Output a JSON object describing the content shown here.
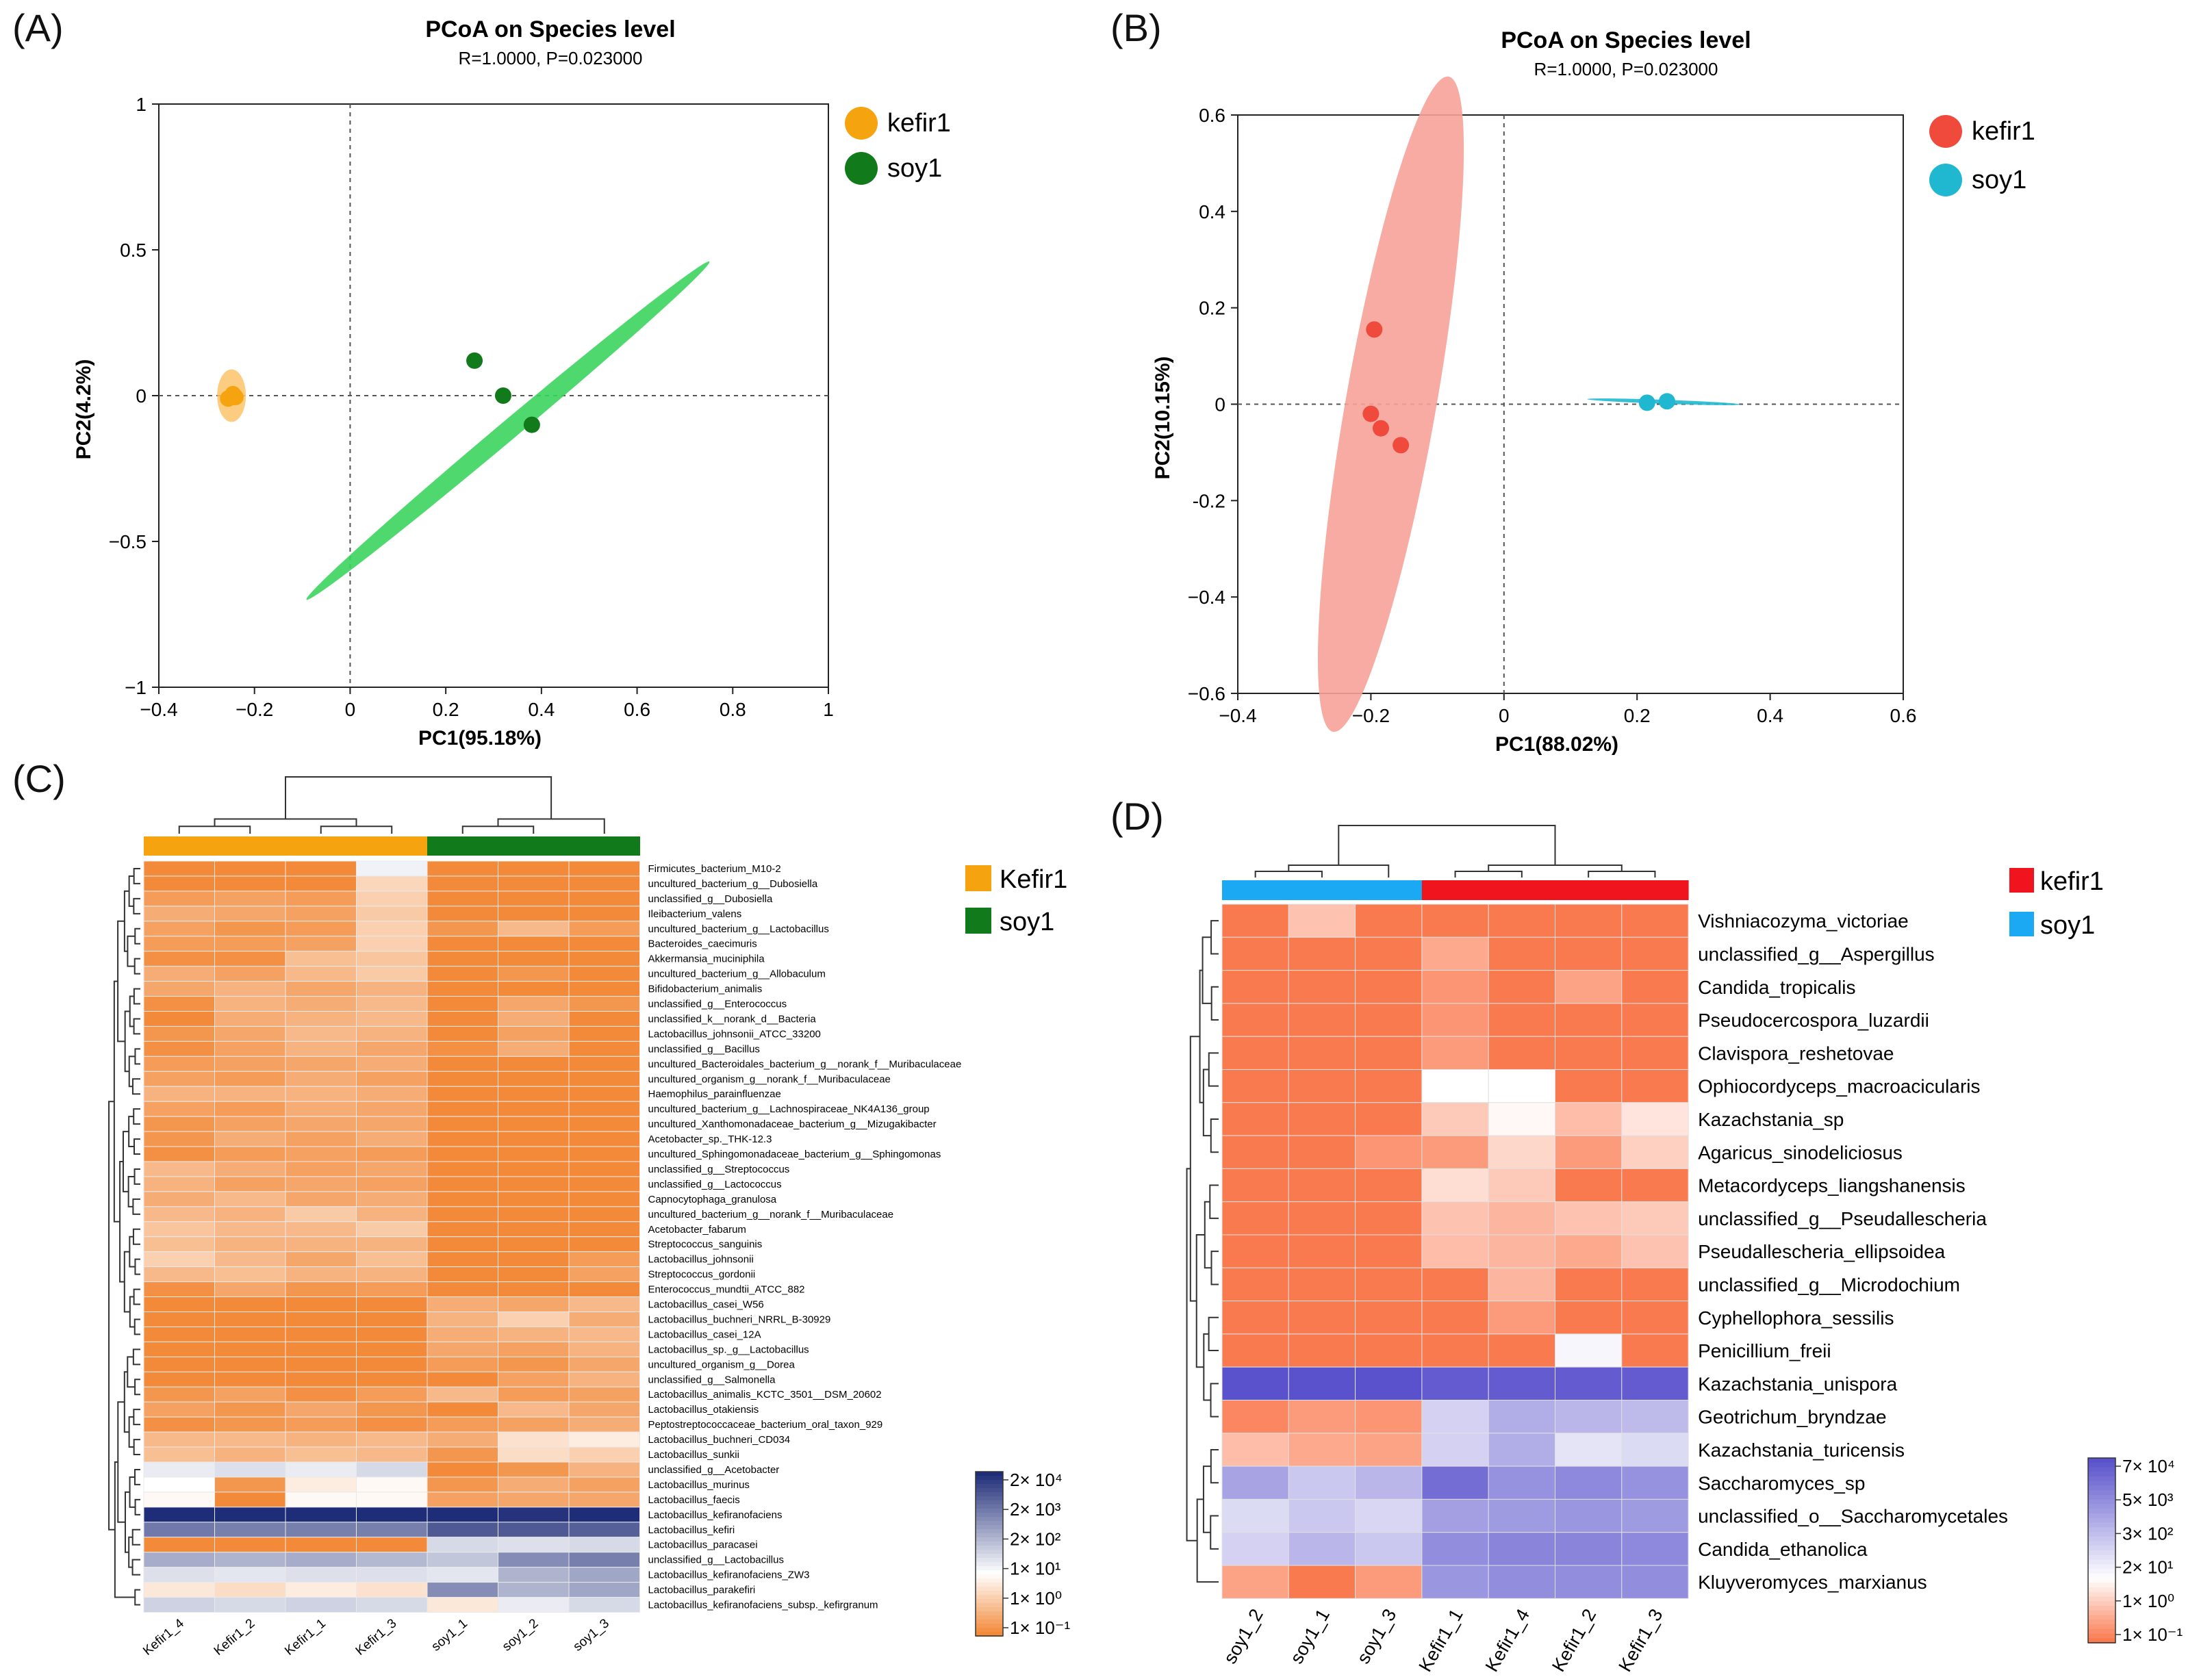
{
  "panels": {
    "A": {
      "letter": "(A)",
      "title": "PCoA on Species level",
      "subtitle": "R=1.0000, P=0.023000"
    },
    "B": {
      "letter": "(B)",
      "title": "PCoA on Species level",
      "subtitle": "R=1.0000, P=0.023000"
    },
    "C": {
      "letter": "(C)"
    },
    "D": {
      "letter": "(D)"
    }
  },
  "chart_data": [
    {
      "id": "A",
      "type": "scatter",
      "title": "PCoA on Species level",
      "subtitle": "R=1.0000, P=0.023000",
      "xlabel": "PC1(95.18%)",
      "ylabel": "PC2(4.2%)",
      "xlim": [
        -0.4,
        1
      ],
      "ylim": [
        -1,
        1
      ],
      "xticks": [
        -0.4,
        -0.2,
        0,
        0.2,
        0.4,
        0.6,
        0.8,
        1
      ],
      "xtick_labels": [
        "−0.4",
        "−0.2",
        "0",
        "0.2",
        "0.4",
        "0.6",
        "0.8",
        "1"
      ],
      "yticks": [
        1,
        0.5,
        0,
        -0.5,
        -1
      ],
      "ytick_labels": [
        "1",
        "0.5",
        "0",
        "−0.5",
        "−1"
      ],
      "legend_position": "top-right",
      "series": [
        {
          "name": "kefir1",
          "color": "#f5a30e",
          "ellipse_color": "#fbc36a",
          "points": [
            [
              -0.255,
              -0.01
            ],
            [
              -0.245,
              0.005
            ],
            [
              -0.24,
              -0.005
            ]
          ],
          "ellipse": {
            "cx": -0.248,
            "cy": 0.0,
            "rx": 0.03,
            "ry": 0.055,
            "angle": 0
          }
        },
        {
          "name": "soy1",
          "color": "#117a1a",
          "ellipse_color": "#3cd45e",
          "points": [
            [
              0.26,
              0.12
            ],
            [
              0.32,
              0.0
            ],
            [
              0.38,
              -0.1
            ]
          ],
          "ellipse": {
            "cx": 0.33,
            "cy": -0.12,
            "rx": 0.55,
            "ry": 0.02,
            "angle": -40
          }
        }
      ]
    },
    {
      "id": "B",
      "type": "scatter",
      "title": "PCoA on Species level",
      "subtitle": "R=1.0000, P=0.023000",
      "xlabel": "PC1(88.02%)",
      "ylabel": "PC2(10.15%)",
      "xlim": [
        -0.4,
        0.6
      ],
      "ylim": [
        -0.6,
        0.6
      ],
      "xticks": [
        -0.4,
        -0.2,
        0,
        0.2,
        0.4,
        0.6
      ],
      "xtick_labels": [
        "−0.4",
        "−0.2",
        "0",
        "0.2",
        "0.4",
        "0.6"
      ],
      "yticks": [
        0.6,
        0.4,
        0.2,
        0,
        -0.2,
        -0.4,
        -0.6
      ],
      "ytick_labels": [
        "0.6",
        "0.4",
        "0.2",
        "0",
        "-0.2",
        "−0.4",
        "−0.6"
      ],
      "legend_position": "top-right",
      "series": [
        {
          "name": "kefir1",
          "color": "#f04a3c",
          "ellipse_color": "#f7a298",
          "points": [
            [
              -0.195,
              0.155
            ],
            [
              -0.2,
              -0.02
            ],
            [
              -0.185,
              -0.05
            ],
            [
              -0.155,
              -0.085
            ]
          ],
          "ellipse": {
            "cx": -0.17,
            "cy": 0.0,
            "rx": 0.5,
            "ry": 0.068,
            "angle": -80
          }
        },
        {
          "name": "soy1",
          "color": "#20b8d0",
          "ellipse_color": "#20b8d0",
          "points": [
            [
              0.215,
              0.003
            ],
            [
              0.245,
              0.006
            ]
          ],
          "ellipse": {
            "cx": 0.24,
            "cy": 0.005,
            "rx": 0.115,
            "ry": 0.003,
            "angle": 2
          }
        }
      ]
    },
    {
      "id": "C",
      "type": "heatmap",
      "columns": [
        "Kefir1_4",
        "Kefir1_2",
        "Kefir1_1",
        "Kefir1_3",
        "soy1_1",
        "soy1_2",
        "soy1_3"
      ],
      "group_colors": [
        "#f5a30e",
        "#f5a30e",
        "#f5a30e",
        "#f5a30e",
        "#117a1a",
        "#117a1a",
        "#117a1a"
      ],
      "legend": [
        {
          "name": "Kefir1",
          "color": "#f5a30e"
        },
        {
          "name": "soy1",
          "color": "#117a1a"
        }
      ],
      "colorbar_labels": [
        "2× 10⁴",
        "2× 10³",
        "2× 10²",
        "1× 10¹",
        "1× 10⁰",
        "1× 10⁻¹"
      ],
      "value_scale": "log10 abundance, -1 to 4.3",
      "rows": [
        "Firmicutes_bacterium_M10-2",
        "uncultured_bacterium_g__Dubosiella",
        "unclassified_g__Dubosiella",
        "Ileibacterium_valens",
        "uncultured_bacterium_g__Lactobacillus",
        "Bacteroides_caecimuris",
        "Akkermansia_muciniphila",
        "uncultured_bacterium_g__Allobaculum",
        "Bifidobacterium_animalis",
        "unclassified_g__Enterococcus",
        "unclassified_k__norank_d__Bacteria",
        "Lactobacillus_johnsonii_ATCC_33200",
        "unclassified_g__Bacillus",
        "uncultured_Bacteroidales_bacterium_g__norank_f__Muribaculaceae",
        "uncultured_organism_g__norank_f__Muribaculaceae",
        "Haemophilus_parainfluenzae",
        "uncultured_bacterium_g__Lachnospiraceae_NK4A136_group",
        "uncultured_Xanthomonadaceae_bacterium_g__Mizugakibacter",
        "Acetobacter_sp._THK-12.3",
        "uncultured_Sphingomonadaceae_bacterium_g__Sphingomonas",
        "unclassified_g__Streptococcus",
        "unclassified_g__Lactococcus",
        "Capnocytophaga_granulosa",
        "uncultured_bacterium_g__norank_f__Muribaculaceae",
        "Acetobacter_fabarum",
        "Streptococcus_sanguinis",
        "Lactobacillus_johnsonii",
        "Streptococcus_gordonii",
        "Enterococcus_mundtii_ATCC_882",
        "Lactobacillus_casei_W56",
        "Lactobacillus_buchneri_NRRL_B-30929",
        "Lactobacillus_casei_12A",
        "Lactobacillus_sp._g__Lactobacillus",
        "uncultured_organism_g__Dorea",
        "unclassified_g__Salmonella",
        "Lactobacillus_animalis_KCTC_3501__DSM_20602",
        "Lactobacillus_otakiensis",
        "Peptostreptococcaceae_bacterium_oral_taxon_929",
        "Lactobacillus_buchneri_CD034",
        "Lactobacillus_sunkii",
        "unclassified_g__Acetobacter",
        "Lactobacillus_murinus",
        "Lactobacillus_faecis",
        "Lactobacillus_kefiranofaciens",
        "Lactobacillus_kefiri",
        "Lactobacillus_paracasei",
        "unclassified_g__Lactobacillus",
        "Lactobacillus_kefiranofaciens_ZW3",
        "Lactobacillus_parakefiri",
        "Lactobacillus_kefiranofaciens_subsp._kefirgranum"
      ],
      "values": [
        [
          -1,
          -1,
          -1,
          1.2,
          -1,
          -1,
          -1
        ],
        [
          -1,
          -1,
          -1,
          0.3,
          -1,
          -1,
          -1
        ],
        [
          -0.7,
          -0.6,
          -0.7,
          0.2,
          -1,
          -1,
          -1
        ],
        [
          -0.4,
          -0.5,
          -0.6,
          0.1,
          -1,
          -1,
          -1
        ],
        [
          -0.6,
          -0.8,
          -0.7,
          0.2,
          -0.8,
          -0.2,
          -0.7
        ],
        [
          -0.7,
          -0.7,
          -0.6,
          0.2,
          -1,
          -1,
          -1
        ],
        [
          -0.9,
          -0.9,
          -0.1,
          0.0,
          -1,
          -1,
          -1
        ],
        [
          -0.4,
          -0.6,
          -0.2,
          0.1,
          -1,
          -0.8,
          -1
        ],
        [
          -0.5,
          -0.3,
          -0.5,
          -0.3,
          -1,
          -1,
          -1
        ],
        [
          -0.9,
          -0.3,
          -0.4,
          -0.2,
          -1,
          -0.5,
          -0.8
        ],
        [
          -1,
          -0.4,
          -0.3,
          -0.2,
          -1,
          -0.4,
          -1
        ],
        [
          -0.8,
          -0.5,
          -0.2,
          -0.3,
          -1,
          -0.6,
          -1
        ],
        [
          -0.9,
          -0.6,
          -0.3,
          -0.5,
          -0.9,
          -0.4,
          -1
        ],
        [
          -0.7,
          -0.6,
          -0.5,
          -0.4,
          -1,
          -1,
          -1
        ],
        [
          -0.6,
          -0.7,
          -0.4,
          -0.6,
          -1,
          -1,
          -1
        ],
        [
          -0.3,
          -0.3,
          -0.3,
          -0.4,
          -1,
          -1,
          -1
        ],
        [
          -0.6,
          -0.7,
          -0.4,
          -0.5,
          -1,
          -1,
          -1
        ],
        [
          -0.8,
          -0.6,
          -0.5,
          -0.5,
          -1,
          -1,
          -1
        ],
        [
          -0.8,
          -0.4,
          -0.6,
          -0.4,
          -1,
          -1,
          -1
        ],
        [
          -0.9,
          -0.7,
          -0.6,
          -0.7,
          -1,
          -1,
          -1
        ],
        [
          -0.2,
          -0.4,
          -0.6,
          -0.5,
          -1,
          -1,
          -1
        ],
        [
          -0.3,
          -0.6,
          -0.5,
          -0.6,
          -1,
          -1,
          -1
        ],
        [
          -0.4,
          -0.2,
          -0.5,
          -0.4,
          -1,
          -1,
          -1
        ],
        [
          -0.2,
          -0.3,
          0.1,
          -0.3,
          -1,
          -1,
          -1
        ],
        [
          0.0,
          -0.2,
          -0.2,
          0.1,
          -1,
          -1,
          -1
        ],
        [
          -0.1,
          -0.3,
          -0.3,
          -0.3,
          -1,
          -1,
          -1
        ],
        [
          0.2,
          -0.2,
          -0.5,
          -0.1,
          -1,
          -1,
          -0.7
        ],
        [
          -0.2,
          -0.1,
          -0.3,
          -0.3,
          -1,
          -1,
          -0.6
        ],
        [
          -0.9,
          -0.5,
          -0.8,
          -0.7,
          -1,
          -1,
          -1
        ],
        [
          -1,
          -1,
          -1,
          -1,
          -0.4,
          -0.5,
          -0.2
        ],
        [
          -1,
          -1,
          -1,
          -1,
          -0.3,
          0.2,
          -0.4
        ],
        [
          -1,
          -1,
          -1,
          -1,
          -0.4,
          -0.3,
          -0.2
        ],
        [
          -1,
          -1,
          -1,
          -1,
          -0.5,
          -0.6,
          -0.3
        ],
        [
          -1,
          -1,
          -1,
          -1,
          -0.7,
          -0.8,
          -0.5
        ],
        [
          -1,
          -1,
          -1,
          -1,
          -1,
          -0.6,
          -0.3
        ],
        [
          -0.8,
          -0.6,
          -0.9,
          -0.7,
          -0.2,
          -0.7,
          -0.6
        ],
        [
          -0.6,
          -0.8,
          -0.5,
          -0.8,
          -1,
          -0.2,
          -0.5
        ],
        [
          -0.9,
          -0.8,
          -0.7,
          -0.9,
          -0.7,
          -0.6,
          -0.4
        ],
        [
          -0.2,
          -0.2,
          -0.3,
          -0.2,
          -0.4,
          0.5,
          0.7
        ],
        [
          -0.1,
          -0.3,
          -0.1,
          -0.2,
          -0.8,
          0.4,
          0.2
        ],
        [
          1.3,
          1.5,
          1.3,
          1.6,
          -1,
          -0.8,
          -0.3
        ],
        [
          1.0,
          -0.8,
          0.7,
          0.9,
          -0.8,
          -0.4,
          -0.6
        ],
        [
          0.9,
          -1,
          0.9,
          0.9,
          -0.6,
          -0.5,
          -0.5
        ],
        [
          4.3,
          4.3,
          4.3,
          4.3,
          4.3,
          4.2,
          4.3
        ],
        [
          3.1,
          3.0,
          3.0,
          3.0,
          3.6,
          3.6,
          3.5
        ],
        [
          -1,
          -1,
          -1,
          -1,
          1.6,
          1.5,
          1.6
        ],
        [
          2.3,
          2.2,
          2.3,
          2.1,
          1.9,
          2.8,
          3.0
        ],
        [
          1.5,
          1.4,
          1.5,
          1.5,
          1.4,
          2.2,
          2.4
        ],
        [
          0.6,
          0.4,
          0.7,
          0.5,
          2.8,
          2.2,
          2.4
        ],
        [
          1.7,
          1.6,
          1.7,
          1.6,
          0.6,
          1.3,
          1.6
        ]
      ]
    },
    {
      "id": "D",
      "type": "heatmap",
      "columns": [
        "soy1_2",
        "soy1_1",
        "soy1_3",
        "Kefir1_1",
        "Kefir1_4",
        "Kefir1_2",
        "Kefir1_3"
      ],
      "group_colors": [
        "#1aa9f2",
        "#1aa9f2",
        "#1aa9f2",
        "#f0141e",
        "#f0141e",
        "#f0141e",
        "#f0141e"
      ],
      "legend": [
        {
          "name": "kefir1",
          "color": "#f0141e"
        },
        {
          "name": "soy1",
          "color": "#1aa9f2"
        }
      ],
      "colorbar_labels": [
        "7× 10⁴",
        "5× 10³",
        "3× 10²",
        "2× 10¹",
        "1× 10⁰",
        "1× 10⁻¹"
      ],
      "value_scale": "log10 abundance, -1 to 4.8",
      "rows": [
        "Vishniacozyma_victoriae",
        "unclassified_g__Aspergillus",
        "Candida_tropicalis",
        "Pseudocercospora_luzardii",
        "Clavispora_reshetovae",
        "Ophiocordyceps_macroacicularis",
        "Kazachstania_sp",
        "Agaricus_sinodeliciosus",
        "Metacordyceps_liangshanensis",
        "unclassified_g__Pseudallescheria",
        "Pseudallescheria_ellipsoidea",
        "unclassified_g__Microdochium",
        "Cyphellophora_sessilis",
        "Penicillium_freii",
        "Kazachstania_unispora",
        "Geotrichum_bryndzae",
        "Kazachstania_turicensis",
        "Saccharomyces_sp",
        "unclassified_o__Saccharomycetales",
        "Candida_ethanolica",
        "Kluyveromyces_marxianus"
      ],
      "values": [
        [
          -1,
          0.1,
          -1,
          -1,
          -1,
          -1,
          -1
        ],
        [
          -1,
          -1,
          -1,
          -0.3,
          -1,
          -1,
          -1
        ],
        [
          -1,
          -1,
          -1,
          -0.6,
          -1,
          -0.4,
          -1
        ],
        [
          -1,
          -1,
          -1,
          -0.6,
          -1,
          -1,
          -1
        ],
        [
          -1,
          -1,
          -1,
          -0.5,
          -1,
          -1,
          -1
        ],
        [
          -1,
          -1,
          -1,
          1.0,
          1.0,
          -1,
          -1
        ],
        [
          -1,
          -1,
          -1,
          0.2,
          0.9,
          0.0,
          0.6
        ],
        [
          -1,
          -1,
          -0.6,
          -0.5,
          0.4,
          -0.5,
          0.3
        ],
        [
          -1,
          -1,
          -1,
          0.5,
          0.2,
          -1,
          -1
        ],
        [
          -1,
          -1,
          -1,
          0.1,
          -0.1,
          0.1,
          0.2
        ],
        [
          -1,
          -1,
          -1,
          0.0,
          -0.1,
          -0.3,
          0.1
        ],
        [
          -1,
          -1,
          -1,
          -1,
          -0.1,
          -1,
          -1
        ],
        [
          -1,
          -1,
          -1,
          -1,
          -0.5,
          -1,
          -1
        ],
        [
          -1,
          -1,
          -1,
          -1,
          -1,
          1.2,
          -1
        ],
        [
          4.8,
          4.8,
          4.8,
          4.6,
          4.6,
          4.6,
          4.6
        ],
        [
          -0.8,
          -0.5,
          -0.6,
          2.0,
          2.8,
          2.6,
          2.5
        ],
        [
          0.0,
          -0.3,
          -0.4,
          2.0,
          2.8,
          1.6,
          1.8
        ],
        [
          3.0,
          2.2,
          2.6,
          4.2,
          3.4,
          3.6,
          3.4
        ],
        [
          1.8,
          2.2,
          1.9,
          3.1,
          3.2,
          3.3,
          3.2
        ],
        [
          2.0,
          2.6,
          2.2,
          3.5,
          3.7,
          3.7,
          3.6
        ],
        [
          -0.4,
          -1,
          -0.5,
          3.3,
          3.5,
          3.5,
          3.5
        ]
      ]
    }
  ]
}
